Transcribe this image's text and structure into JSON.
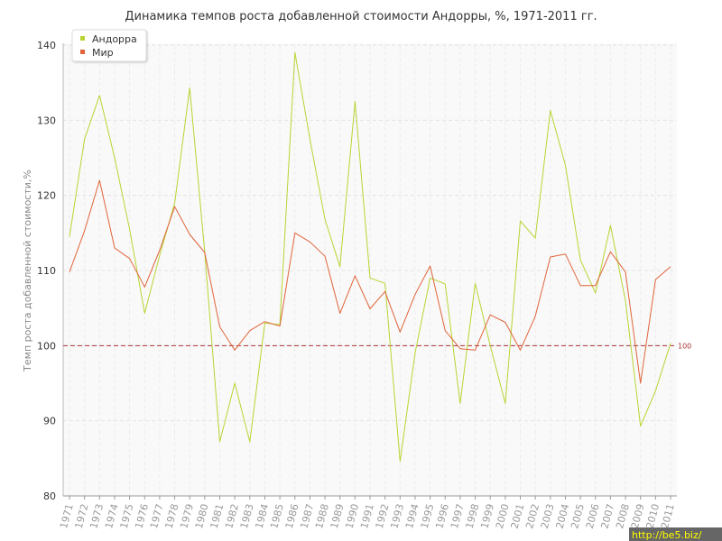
{
  "chart_data": {
    "type": "line",
    "title": "Динамика темпов роста добавленной стоимости Андорры, %, 1971-2011 гг.",
    "ylabel": "Темп роста добавленной стоимости,%",
    "xlabel": "",
    "ylim": [
      80,
      140
    ],
    "yticks": [
      80,
      90,
      100,
      110,
      120,
      130,
      140
    ],
    "grid": true,
    "legend_position": "top-left",
    "reference_line": {
      "value": 100,
      "label": "100",
      "color": "#aa3333"
    },
    "x": [
      "1971",
      "1972",
      "1973",
      "1974",
      "1975",
      "1976",
      "1977",
      "1978",
      "1979",
      "1980",
      "1981",
      "1982",
      "1983",
      "1984",
      "1985",
      "1986",
      "1987",
      "1988",
      "1989",
      "1990",
      "1991",
      "1992",
      "1993",
      "1994",
      "1995",
      "1996",
      "1997",
      "1998",
      "1999",
      "2000",
      "2001",
      "2002",
      "2003",
      "2004",
      "2005",
      "2006",
      "2007",
      "2008",
      "2009",
      "2010",
      "2011"
    ],
    "series": [
      {
        "name": "Андорра",
        "color": "#b8d432",
        "values": [
          114.5,
          127.5,
          133.3,
          125.0,
          115.5,
          104.3,
          112.0,
          119.0,
          134.3,
          112.5,
          87.2,
          95.0,
          87.2,
          103.0,
          102.8,
          139.0,
          127.5,
          116.8,
          110.5,
          132.5,
          109.0,
          108.3,
          84.6,
          99.0,
          109.0,
          108.2,
          92.3,
          108.3,
          100.0,
          92.3,
          116.6,
          114.3,
          131.3,
          124.0,
          111.4,
          107.0,
          116.0,
          106.0,
          89.3,
          94.0,
          100.3
        ]
      },
      {
        "name": "Мир",
        "color": "#e0643a",
        "values": [
          109.8,
          115.3,
          122.0,
          113.0,
          111.6,
          107.8,
          112.7,
          118.5,
          114.8,
          112.4,
          102.5,
          99.4,
          102.0,
          103.2,
          102.6,
          115.0,
          113.8,
          111.9,
          104.3,
          109.3,
          104.9,
          107.2,
          101.8,
          106.8,
          110.6,
          102.0,
          99.6,
          99.4,
          104.1,
          103.1,
          99.4,
          103.9,
          111.8,
          112.2,
          108.0,
          108.0,
          112.5,
          109.8,
          95.0,
          108.8,
          110.5
        ]
      }
    ]
  },
  "watermark": "http://be5.biz/"
}
